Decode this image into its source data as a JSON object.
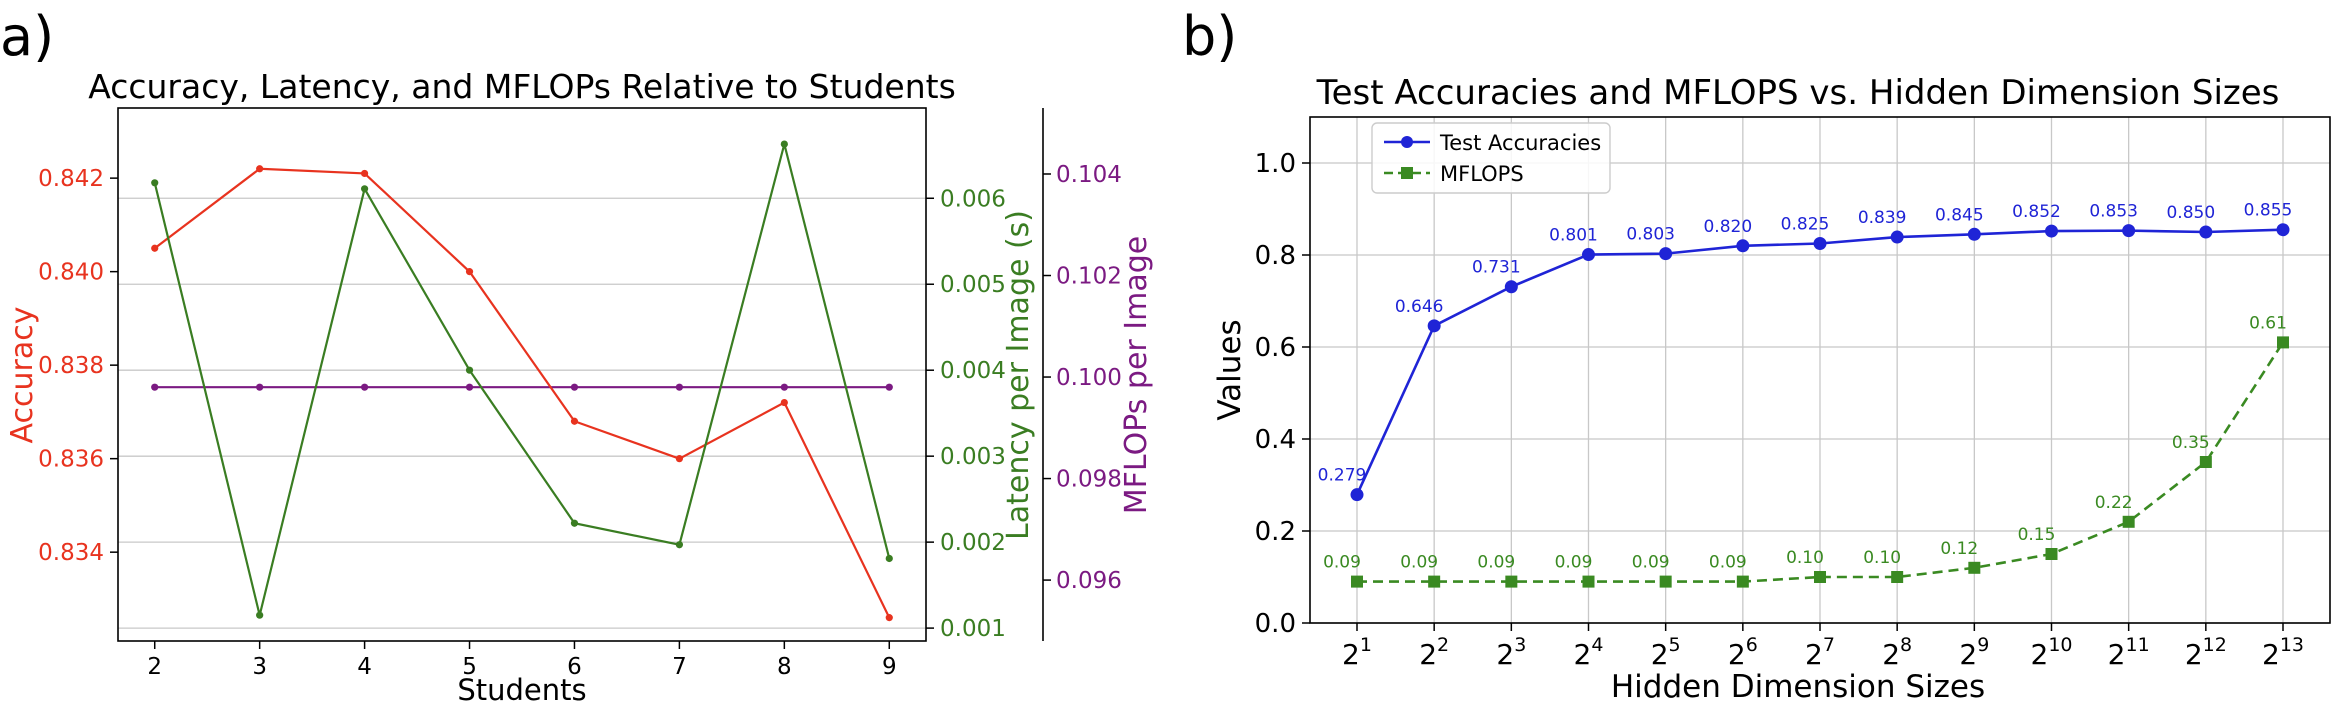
{
  "chart_data": [
    {
      "panel_label": "a)",
      "type": "line",
      "title": "Accuracy, Latency, and MFLOPs Relative to Students",
      "xlabel": "Students",
      "x": [
        2,
        3,
        4,
        5,
        6,
        7,
        8,
        9
      ],
      "x_ticks": [
        "2",
        "3",
        "4",
        "5",
        "6",
        "7",
        "8",
        "9"
      ],
      "xlim": [
        1.65,
        9.35
      ],
      "grid": "horizontal",
      "axes": [
        {
          "id": "accuracy",
          "label": "Accuracy",
          "side": "left",
          "color": "#e8331f",
          "ylim": [
            0.8321,
            0.8435
          ],
          "ticks": [
            "0.834",
            "0.836",
            "0.838",
            "0.840",
            "0.842"
          ]
        },
        {
          "id": "latency",
          "label": "Latency per Image (s)",
          "side": "right",
          "color": "#3a7d22",
          "ylim": [
            0.00085,
            0.00705
          ],
          "ticks": [
            "0.001",
            "0.002",
            "0.003",
            "0.004",
            "0.005",
            "0.006"
          ]
        },
        {
          "id": "mflops",
          "label": "MFLOPs per Image",
          "side": "right-outer",
          "color": "#7b1a82",
          "ylim": [
            0.0948,
            0.1053
          ],
          "ticks": [
            "0.096",
            "0.098",
            "0.100",
            "0.102",
            "0.104"
          ]
        }
      ],
      "series": [
        {
          "axis": "accuracy",
          "values": [
            0.8405,
            0.8422,
            0.8421,
            0.84,
            0.8368,
            0.836,
            0.8372,
            0.8326
          ]
        },
        {
          "axis": "latency",
          "values": [
            0.00618,
            0.00115,
            0.00611,
            0.004,
            0.00222,
            0.00197,
            0.00663,
            0.00181
          ]
        },
        {
          "axis": "mflops",
          "values": [
            0.0998,
            0.0998,
            0.0998,
            0.0998,
            0.0998,
            0.0998,
            0.0998,
            0.0998
          ]
        }
      ]
    },
    {
      "panel_label": "b)",
      "type": "line",
      "title": "Test Accuracies and MFLOPS vs. Hidden Dimension Sizes",
      "xlabel": "Hidden Dimension Sizes",
      "ylabel": "Values",
      "ylim": [
        0.0,
        1.1
      ],
      "y_ticks": [
        "0.0",
        "0.2",
        "0.4",
        "0.6",
        "0.8",
        "1.0"
      ],
      "x_exponents": [
        "1",
        "2",
        "3",
        "4",
        "5",
        "6",
        "7",
        "8",
        "9",
        "10",
        "11",
        "12",
        "13"
      ],
      "x_base": "2",
      "grid": "both",
      "legend": "top-left",
      "series": [
        {
          "name": "Test Accuracies",
          "color": "#1f24d6",
          "marker": "circle",
          "line": "solid",
          "values": [
            0.279,
            0.646,
            0.731,
            0.801,
            0.803,
            0.82,
            0.825,
            0.839,
            0.845,
            0.852,
            0.853,
            0.85,
            0.855
          ],
          "labels": [
            "0.279",
            "0.646",
            "0.731",
            "0.801",
            "0.803",
            "0.820",
            "0.825",
            "0.839",
            "0.845",
            "0.852",
            "0.853",
            "0.850",
            "0.855"
          ]
        },
        {
          "name": "MFLOPS",
          "color": "#3a8a22",
          "marker": "square",
          "line": "dashed",
          "values": [
            0.09,
            0.09,
            0.09,
            0.09,
            0.09,
            0.09,
            0.1,
            0.1,
            0.12,
            0.15,
            0.22,
            0.35,
            0.61
          ],
          "labels": [
            "0.09",
            "0.09",
            "0.09",
            "0.09",
            "0.09",
            "0.09",
            "0.10",
            "0.10",
            "0.12",
            "0.15",
            "0.22",
            "0.35",
            "0.61"
          ]
        }
      ]
    }
  ]
}
